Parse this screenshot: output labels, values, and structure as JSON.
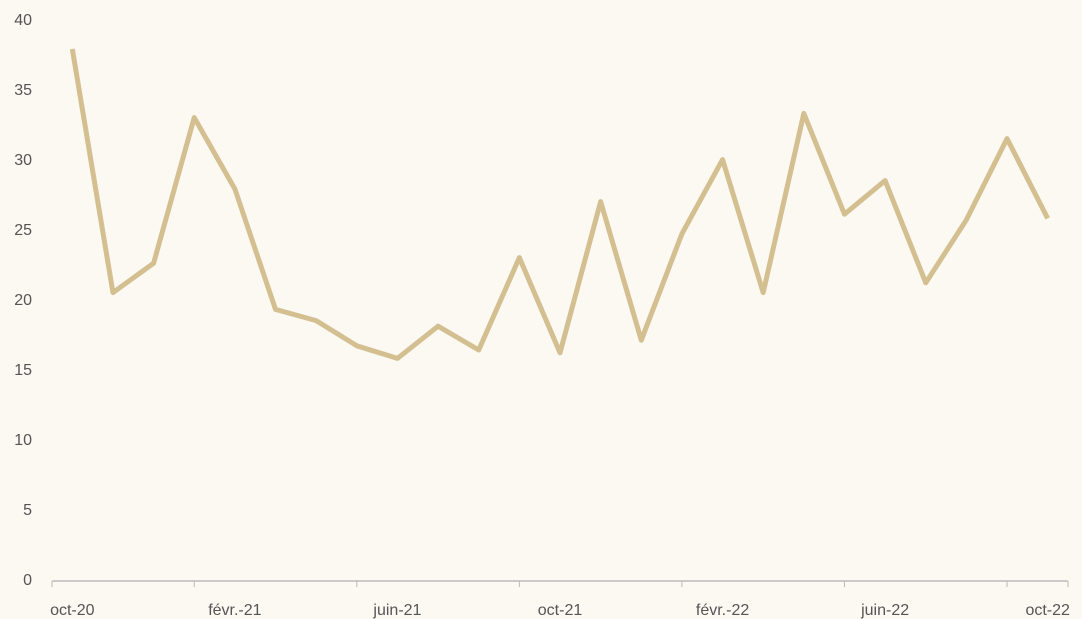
{
  "chart_data": {
    "type": "line",
    "categories": [
      "oct-20",
      null,
      null,
      null,
      "févr.-21",
      null,
      null,
      null,
      "juin-21",
      null,
      null,
      null,
      "oct-21",
      null,
      null,
      null,
      "févr.-22",
      null,
      null,
      null,
      "juin-22",
      null,
      null,
      null,
      "oct-22"
    ],
    "series": [
      {
        "name": null,
        "color": "#d4bf91",
        "values": [
          38.0,
          20.6,
          22.7,
          33.1,
          28.0,
          19.4,
          18.6,
          16.8,
          15.9,
          18.2,
          16.5,
          23.1,
          16.3,
          27.1,
          17.2,
          24.8,
          30.1,
          20.6,
          33.4,
          26.2,
          28.6,
          21.3,
          25.8,
          31.6,
          25.9
        ]
      }
    ],
    "ylim": [
      0,
      40
    ],
    "yticks": [
      0,
      5,
      10,
      15,
      20,
      25,
      30,
      35,
      40
    ],
    "grid": false
  }
}
